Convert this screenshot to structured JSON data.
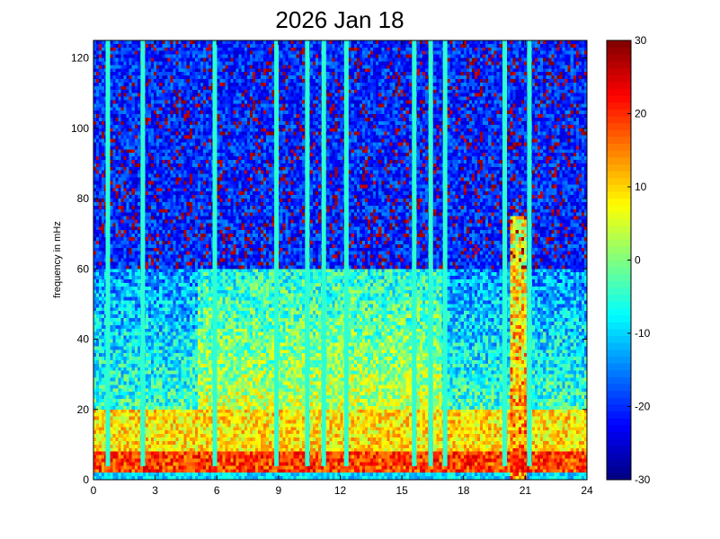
{
  "chart_data": {
    "type": "heatmap",
    "title": "2026 Jan 18",
    "xlabel": "",
    "ylabel": "frequency in mHz",
    "xlim": [
      0,
      24
    ],
    "ylim": [
      0,
      125
    ],
    "x_ticks": [
      "0",
      "3",
      "6",
      "9",
      "12",
      "15",
      "18",
      "21",
      "24"
    ],
    "y_ticks": [
      "0",
      "20",
      "40",
      "60",
      "80",
      "100",
      "120"
    ],
    "colorbar": {
      "min": -30,
      "max": 30,
      "ticks": [
        "-30",
        "-20",
        "-10",
        "0",
        "10",
        "20",
        "30"
      ],
      "colormap": "jet"
    },
    "grid": false,
    "vertical_streaks_hours": [
      0.7,
      2.4,
      5.9,
      8.9,
      10.4,
      11.2,
      12.3,
      15.6,
      16.4,
      17.1,
      20.0,
      21.2
    ],
    "features": {
      "high_energy_band_mhz": [
        2,
        8
      ],
      "mid_energy_region_mhz": [
        10,
        60
      ],
      "background_high_freq_level": -20,
      "low_freq_level": 12,
      "mid_level": 0,
      "burst_hours": [
        20.3,
        21.1
      ],
      "burst_max_freq_mhz": 75
    }
  }
}
